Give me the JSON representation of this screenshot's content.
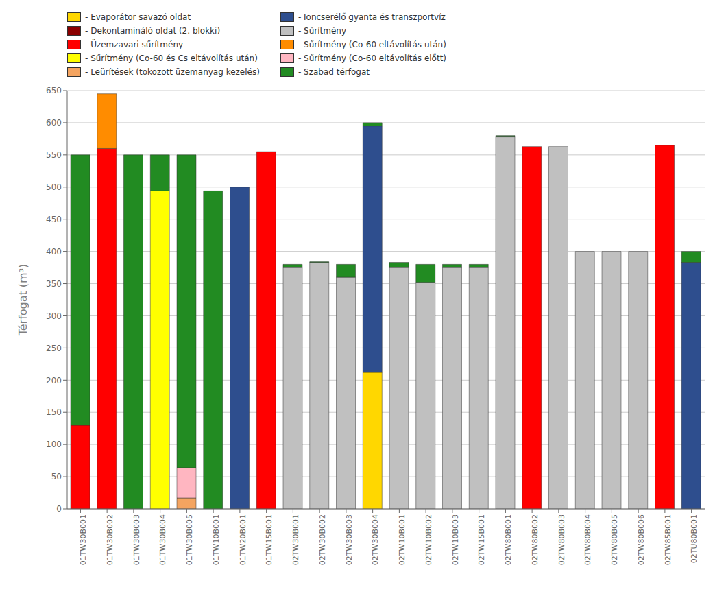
{
  "chart_data": {
    "type": "bar",
    "stacked": true,
    "grid": true,
    "legend": "top",
    "ylabel": "Térfogat (m³)",
    "categories": [
      "01TW30B001",
      "01TW30B002",
      "01TW30B003",
      "01TW30B004",
      "01TW30B005",
      "01TW10B001",
      "01TW20B001",
      "01TW15B001",
      "02TW30B001",
      "02TW30B002",
      "02TW30B003",
      "02TW30B004",
      "02TW10B001",
      "02TW10B002",
      "02TW10B003",
      "02TW15B001",
      "02TW80B001",
      "02TW80B002",
      "02TW80B003",
      "02TW80B004",
      "02TW80B005",
      "02TW80B006",
      "02TW85B001",
      "02TU80B001"
    ],
    "series": [
      {
        "name": "- Evaporátor savazó oldat",
        "color": "#FFD700",
        "values": [
          0,
          0,
          0,
          0,
          0,
          0,
          0,
          0,
          0,
          0,
          0,
          212,
          0,
          0,
          0,
          0,
          0,
          0,
          0,
          0,
          0,
          0,
          0,
          0
        ]
      },
      {
        "name": "- Dekontamináló oldat (2. blokki)",
        "color": "#8B0000",
        "values": [
          0,
          0,
          0,
          0,
          0,
          0,
          0,
          0,
          0,
          0,
          0,
          0,
          0,
          0,
          0,
          0,
          0,
          0,
          0,
          0,
          0,
          0,
          0,
          0
        ]
      },
      {
        "name": "- Üzemzavari sűrítmény",
        "color": "#FF0000",
        "values": [
          130,
          560,
          0,
          0,
          0,
          0,
          0,
          555,
          0,
          0,
          0,
          0,
          0,
          0,
          0,
          0,
          0,
          563,
          0,
          0,
          0,
          0,
          565,
          0
        ]
      },
      {
        "name": "- Sűrítmény (Co-60 és Cs eltávolítás után)",
        "color": "#FFFF00",
        "values": [
          0,
          0,
          0,
          494,
          0,
          0,
          0,
          0,
          0,
          0,
          0,
          0,
          0,
          0,
          0,
          0,
          0,
          0,
          0,
          0,
          0,
          0,
          0,
          0
        ]
      },
      {
        "name": "- Leürítések (tokozott üzemanyag kezelés)",
        "color": "#F4A460",
        "values": [
          0,
          0,
          0,
          0,
          17,
          0,
          0,
          0,
          0,
          0,
          0,
          0,
          0,
          0,
          0,
          0,
          0,
          0,
          0,
          0,
          0,
          0,
          0,
          0
        ]
      },
      {
        "name": "- Ioncserélő gyanta és transzportvíz",
        "color": "#2E4E8E",
        "values": [
          0,
          0,
          0,
          0,
          0,
          0,
          500,
          0,
          0,
          0,
          0,
          383,
          0,
          0,
          0,
          0,
          0,
          0,
          0,
          0,
          0,
          0,
          0,
          383
        ]
      },
      {
        "name": "- Sűrítmény",
        "color": "#C0C0C0",
        "values": [
          0,
          0,
          0,
          0,
          0,
          0,
          0,
          0,
          375,
          383,
          360,
          0,
          375,
          352,
          375,
          375,
          578,
          0,
          563,
          400,
          400,
          400,
          0,
          0
        ]
      },
      {
        "name": "- Sűrítmény (Co-60 eltávolítás után)",
        "color": "#FF8C00",
        "values": [
          0,
          85,
          0,
          0,
          0,
          0,
          0,
          0,
          0,
          0,
          0,
          0,
          0,
          0,
          0,
          0,
          0,
          0,
          0,
          0,
          0,
          0,
          0,
          0
        ]
      },
      {
        "name": "- Sűrítmény (Co-60 eltávolítás előtt)",
        "color": "#FFB6C1",
        "values": [
          0,
          0,
          0,
          0,
          47,
          0,
          0,
          0,
          0,
          0,
          0,
          0,
          0,
          0,
          0,
          0,
          0,
          0,
          0,
          0,
          0,
          0,
          0,
          0
        ]
      },
      {
        "name": "- Szabad térfogat",
        "color": "#228B22",
        "values": [
          420,
          0,
          550,
          56,
          486,
          494,
          0,
          0,
          5,
          1,
          20,
          5,
          8,
          28,
          5,
          5,
          2,
          0,
          0,
          0,
          0,
          0,
          0,
          17
        ]
      }
    ],
    "ylim": [
      0,
      650
    ],
    "yticks": [
      0,
      50,
      100,
      150,
      200,
      250,
      300,
      350,
      400,
      450,
      500,
      550,
      600,
      650
    ]
  }
}
